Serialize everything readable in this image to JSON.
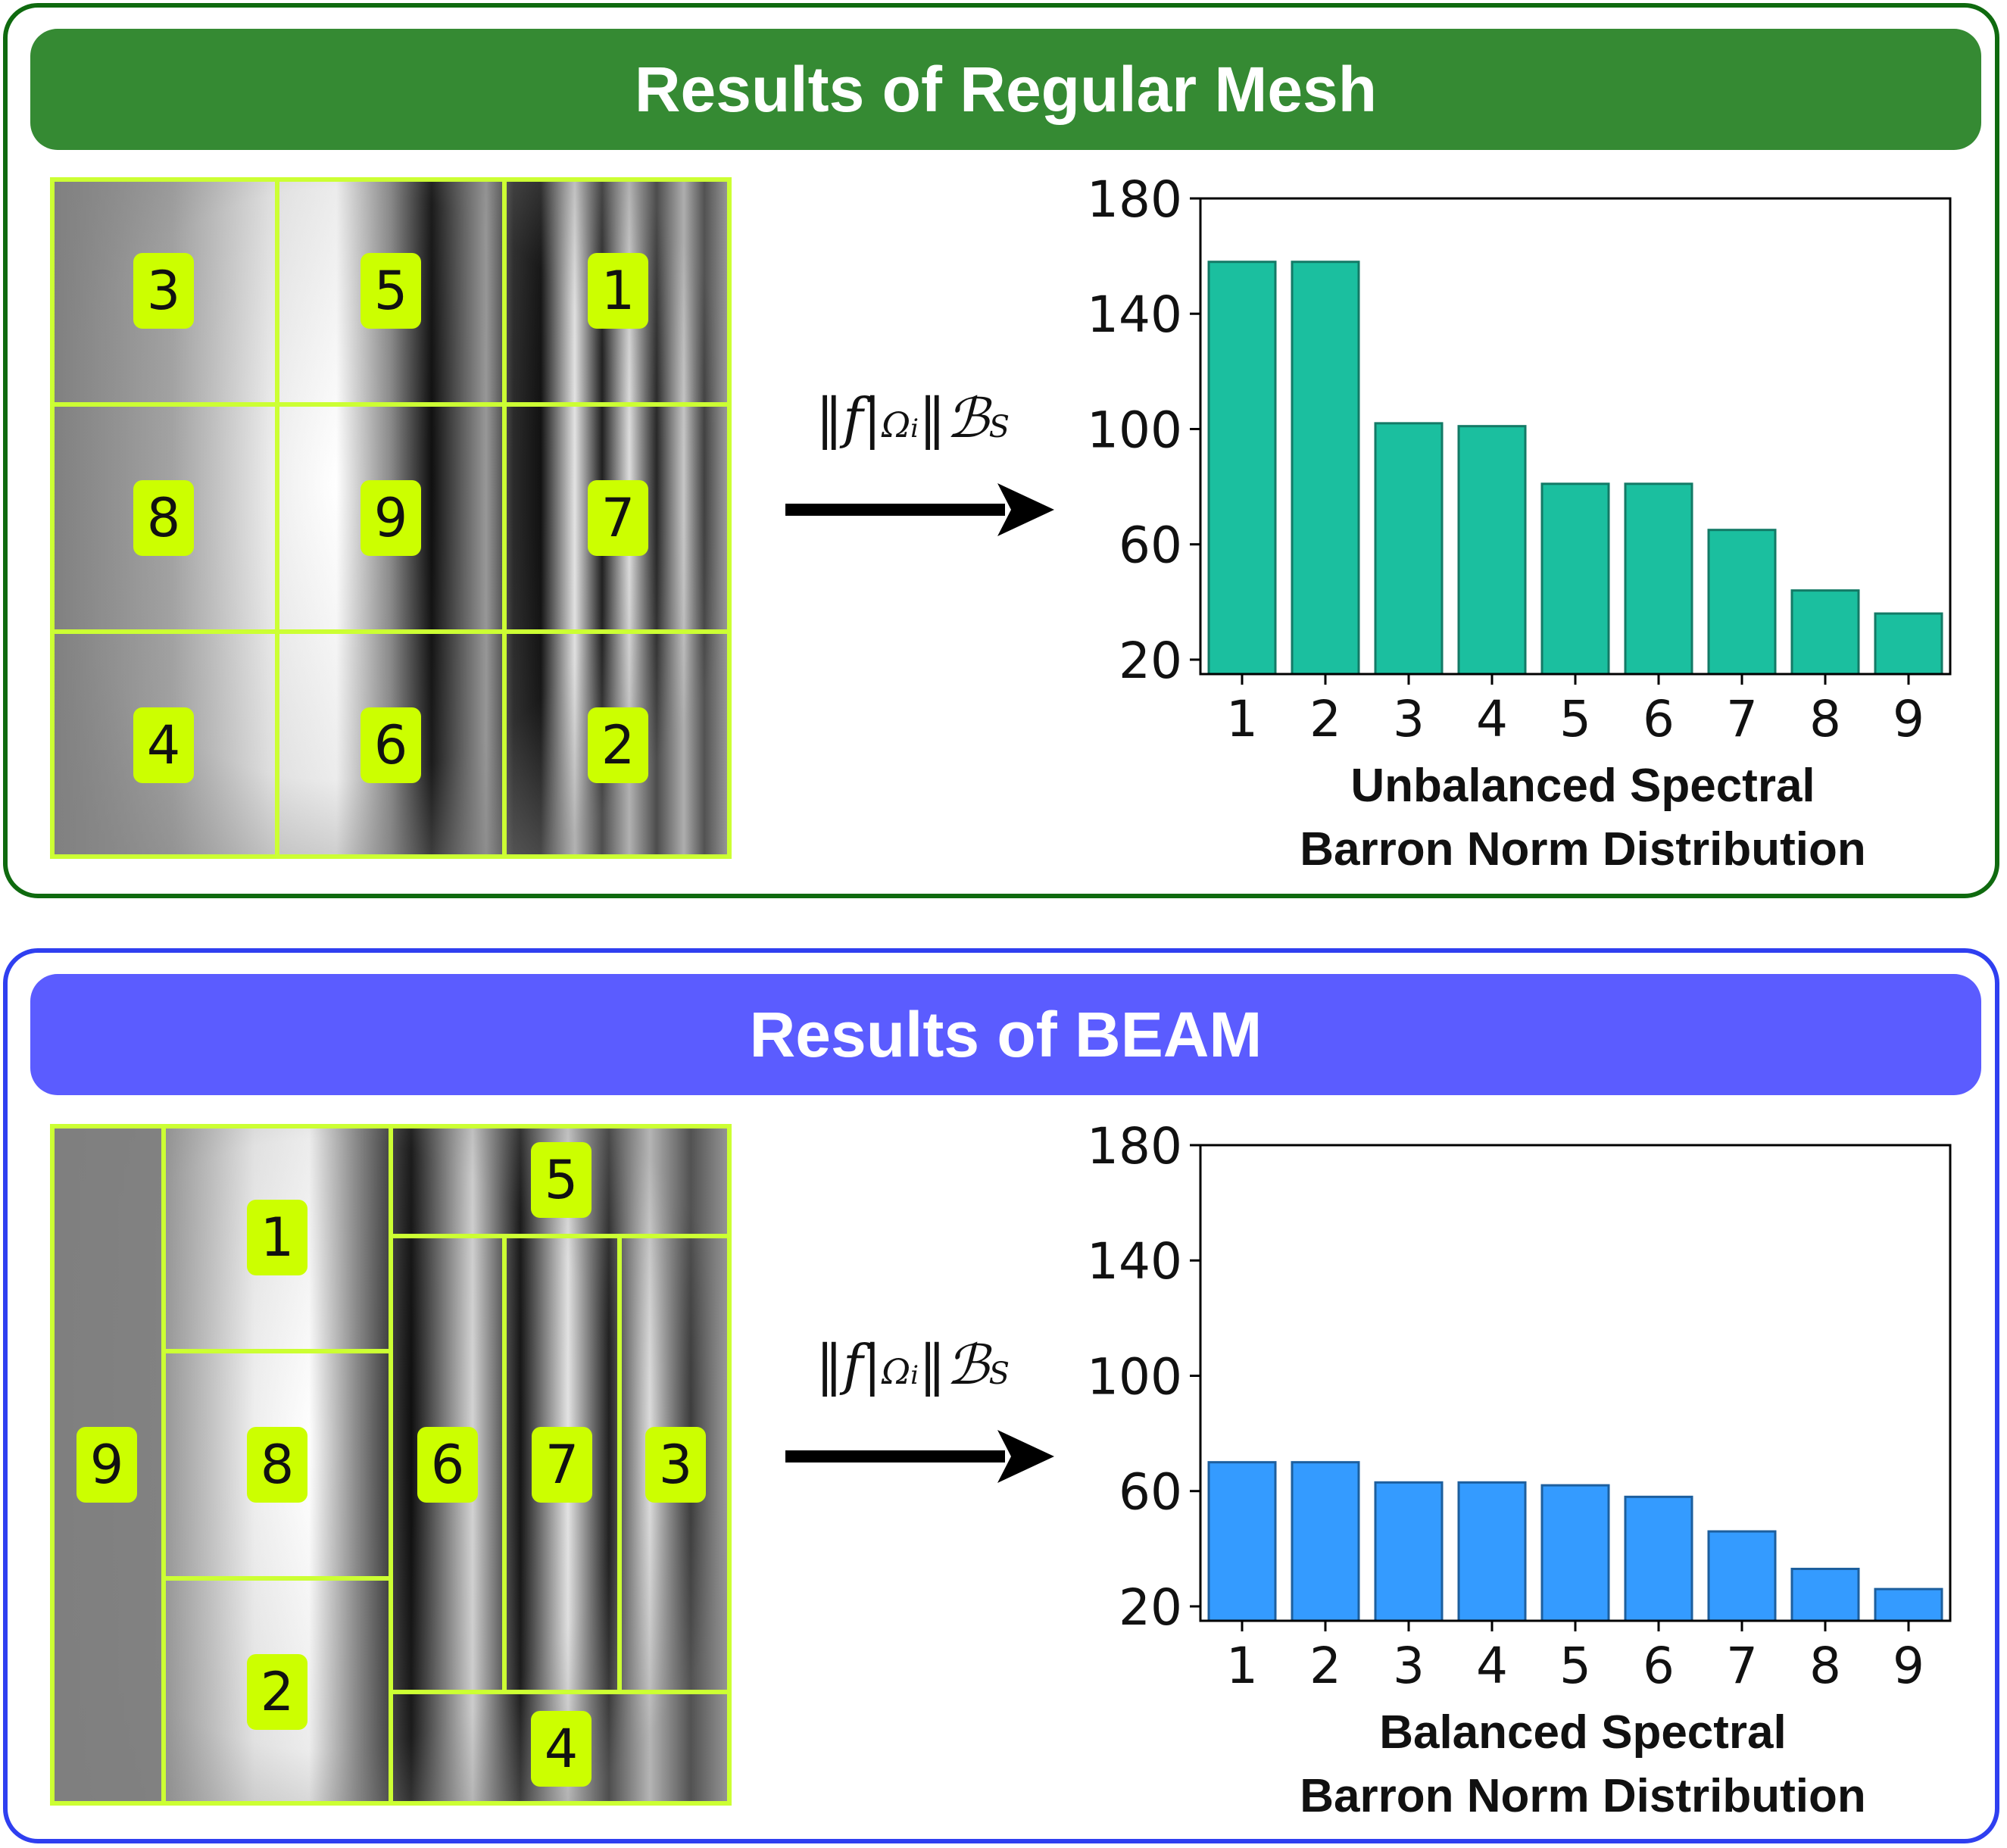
{
  "top": {
    "banner_title": "Results of Regular Mesh",
    "banner_color": "#358a33",
    "mesh_labels": [
      "3",
      "5",
      "1",
      "8",
      "9",
      "7",
      "4",
      "6",
      "2"
    ],
    "norm_f": "‖f|",
    "norm_omega": "Ω",
    "norm_i": "i",
    "norm_close": "‖",
    "norm_space": "ℬ",
    "norm_space_sub": "S",
    "caption_line1": "Unbalanced Spectral",
    "caption_line2": "Barron Norm Distribution"
  },
  "bottom": {
    "banner_title": "Results of BEAM",
    "banner_color": "#5b5cff",
    "mesh_labels": [
      "9",
      "1",
      "8",
      "2",
      "5",
      "6",
      "7",
      "3",
      "4"
    ],
    "norm_f": "‖f|",
    "norm_omega": "Ω",
    "norm_i": "i",
    "norm_close": "‖",
    "norm_space": "ℬ",
    "norm_space_sub": "S",
    "caption_line1": "Balanced Spectral",
    "caption_line2": "Barron Norm Distribution"
  },
  "chart_data": [
    {
      "type": "bar",
      "categories": [
        "1",
        "2",
        "3",
        "4",
        "5",
        "6",
        "7",
        "8",
        "9"
      ],
      "values": [
        158,
        158,
        102,
        101,
        81,
        81,
        65,
        44,
        36
      ],
      "ylim": [
        15,
        180
      ],
      "yticks": [
        20,
        60,
        100,
        140,
        180
      ],
      "xlabel": "Unbalanced Spectral Barron Norm Distribution",
      "bar_color": "#1bbf9f",
      "edge_color": "#137a66"
    },
    {
      "type": "bar",
      "categories": [
        "1",
        "2",
        "3",
        "4",
        "5",
        "6",
        "7",
        "8",
        "9"
      ],
      "values": [
        70,
        70,
        63,
        63,
        62,
        58,
        46,
        33,
        26
      ],
      "ylim": [
        15,
        180
      ],
      "yticks": [
        20,
        60,
        100,
        140,
        180
      ],
      "xlabel": "Balanced Spectral Barron Norm Distribution",
      "bar_color": "#349bff",
      "edge_color": "#1d5f9e"
    }
  ]
}
